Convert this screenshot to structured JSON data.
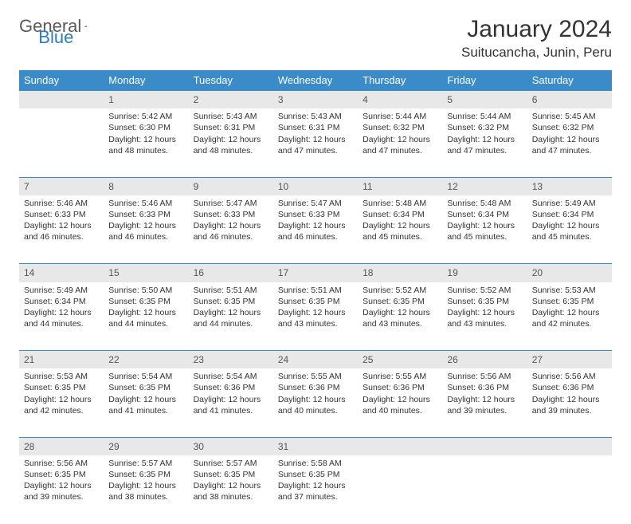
{
  "brand": {
    "part1": "General",
    "part2": "Blue",
    "accent_color": "#2e7cc0"
  },
  "title": "January 2024",
  "location": "Suitucancha, Junin, Peru",
  "header_bg": "#3b8bc8",
  "daynum_bg": "#e8e8e8",
  "weekdays": [
    "Sunday",
    "Monday",
    "Tuesday",
    "Wednesday",
    "Thursday",
    "Friday",
    "Saturday"
  ],
  "weeks": [
    {
      "nums": [
        "",
        "1",
        "2",
        "3",
        "4",
        "5",
        "6"
      ],
      "cells": [
        null,
        {
          "sr": "Sunrise: 5:42 AM",
          "ss": "Sunset: 6:30 PM",
          "dl": "Daylight: 12 hours and 48 minutes."
        },
        {
          "sr": "Sunrise: 5:43 AM",
          "ss": "Sunset: 6:31 PM",
          "dl": "Daylight: 12 hours and 48 minutes."
        },
        {
          "sr": "Sunrise: 5:43 AM",
          "ss": "Sunset: 6:31 PM",
          "dl": "Daylight: 12 hours and 47 minutes."
        },
        {
          "sr": "Sunrise: 5:44 AM",
          "ss": "Sunset: 6:32 PM",
          "dl": "Daylight: 12 hours and 47 minutes."
        },
        {
          "sr": "Sunrise: 5:44 AM",
          "ss": "Sunset: 6:32 PM",
          "dl": "Daylight: 12 hours and 47 minutes."
        },
        {
          "sr": "Sunrise: 5:45 AM",
          "ss": "Sunset: 6:32 PM",
          "dl": "Daylight: 12 hours and 47 minutes."
        }
      ]
    },
    {
      "nums": [
        "7",
        "8",
        "9",
        "10",
        "11",
        "12",
        "13"
      ],
      "cells": [
        {
          "sr": "Sunrise: 5:46 AM",
          "ss": "Sunset: 6:33 PM",
          "dl": "Daylight: 12 hours and 46 minutes."
        },
        {
          "sr": "Sunrise: 5:46 AM",
          "ss": "Sunset: 6:33 PM",
          "dl": "Daylight: 12 hours and 46 minutes."
        },
        {
          "sr": "Sunrise: 5:47 AM",
          "ss": "Sunset: 6:33 PM",
          "dl": "Daylight: 12 hours and 46 minutes."
        },
        {
          "sr": "Sunrise: 5:47 AM",
          "ss": "Sunset: 6:33 PM",
          "dl": "Daylight: 12 hours and 46 minutes."
        },
        {
          "sr": "Sunrise: 5:48 AM",
          "ss": "Sunset: 6:34 PM",
          "dl": "Daylight: 12 hours and 45 minutes."
        },
        {
          "sr": "Sunrise: 5:48 AM",
          "ss": "Sunset: 6:34 PM",
          "dl": "Daylight: 12 hours and 45 minutes."
        },
        {
          "sr": "Sunrise: 5:49 AM",
          "ss": "Sunset: 6:34 PM",
          "dl": "Daylight: 12 hours and 45 minutes."
        }
      ]
    },
    {
      "nums": [
        "14",
        "15",
        "16",
        "17",
        "18",
        "19",
        "20"
      ],
      "cells": [
        {
          "sr": "Sunrise: 5:49 AM",
          "ss": "Sunset: 6:34 PM",
          "dl": "Daylight: 12 hours and 44 minutes."
        },
        {
          "sr": "Sunrise: 5:50 AM",
          "ss": "Sunset: 6:35 PM",
          "dl": "Daylight: 12 hours and 44 minutes."
        },
        {
          "sr": "Sunrise: 5:51 AM",
          "ss": "Sunset: 6:35 PM",
          "dl": "Daylight: 12 hours and 44 minutes."
        },
        {
          "sr": "Sunrise: 5:51 AM",
          "ss": "Sunset: 6:35 PM",
          "dl": "Daylight: 12 hours and 43 minutes."
        },
        {
          "sr": "Sunrise: 5:52 AM",
          "ss": "Sunset: 6:35 PM",
          "dl": "Daylight: 12 hours and 43 minutes."
        },
        {
          "sr": "Sunrise: 5:52 AM",
          "ss": "Sunset: 6:35 PM",
          "dl": "Daylight: 12 hours and 43 minutes."
        },
        {
          "sr": "Sunrise: 5:53 AM",
          "ss": "Sunset: 6:35 PM",
          "dl": "Daylight: 12 hours and 42 minutes."
        }
      ]
    },
    {
      "nums": [
        "21",
        "22",
        "23",
        "24",
        "25",
        "26",
        "27"
      ],
      "cells": [
        {
          "sr": "Sunrise: 5:53 AM",
          "ss": "Sunset: 6:35 PM",
          "dl": "Daylight: 12 hours and 42 minutes."
        },
        {
          "sr": "Sunrise: 5:54 AM",
          "ss": "Sunset: 6:35 PM",
          "dl": "Daylight: 12 hours and 41 minutes."
        },
        {
          "sr": "Sunrise: 5:54 AM",
          "ss": "Sunset: 6:36 PM",
          "dl": "Daylight: 12 hours and 41 minutes."
        },
        {
          "sr": "Sunrise: 5:55 AM",
          "ss": "Sunset: 6:36 PM",
          "dl": "Daylight: 12 hours and 40 minutes."
        },
        {
          "sr": "Sunrise: 5:55 AM",
          "ss": "Sunset: 6:36 PM",
          "dl": "Daylight: 12 hours and 40 minutes."
        },
        {
          "sr": "Sunrise: 5:56 AM",
          "ss": "Sunset: 6:36 PM",
          "dl": "Daylight: 12 hours and 39 minutes."
        },
        {
          "sr": "Sunrise: 5:56 AM",
          "ss": "Sunset: 6:36 PM",
          "dl": "Daylight: 12 hours and 39 minutes."
        }
      ]
    },
    {
      "nums": [
        "28",
        "29",
        "30",
        "31",
        "",
        "",
        ""
      ],
      "cells": [
        {
          "sr": "Sunrise: 5:56 AM",
          "ss": "Sunset: 6:35 PM",
          "dl": "Daylight: 12 hours and 39 minutes."
        },
        {
          "sr": "Sunrise: 5:57 AM",
          "ss": "Sunset: 6:35 PM",
          "dl": "Daylight: 12 hours and 38 minutes."
        },
        {
          "sr": "Sunrise: 5:57 AM",
          "ss": "Sunset: 6:35 PM",
          "dl": "Daylight: 12 hours and 38 minutes."
        },
        {
          "sr": "Sunrise: 5:58 AM",
          "ss": "Sunset: 6:35 PM",
          "dl": "Daylight: 12 hours and 37 minutes."
        },
        null,
        null,
        null
      ]
    }
  ]
}
